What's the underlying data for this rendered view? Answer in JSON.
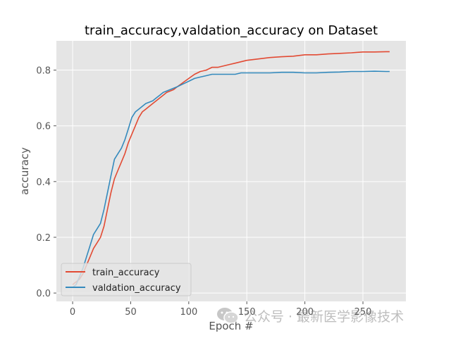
{
  "chart_data": {
    "type": "line",
    "title": "train_accuracy,valdation_accuracy on Dataset",
    "xlabel": "Epoch #",
    "ylabel": "accuracy",
    "xlim": [
      -14,
      287
    ],
    "ylim": [
      -0.03,
      0.905
    ],
    "xticks": [
      0,
      50,
      100,
      150,
      200,
      250
    ],
    "yticks": [
      0.0,
      0.2,
      0.4,
      0.6,
      0.8
    ],
    "ytick_labels": [
      "0.0",
      "0.2",
      "0.4",
      "0.6",
      "0.8"
    ],
    "grid": true,
    "style": "ggplot",
    "legend_position": "lower-left",
    "series": [
      {
        "name": "train_accuracy",
        "color": "#E24A33",
        "x": [
          0,
          3,
          6,
          9,
          12,
          15,
          18,
          21,
          24,
          27,
          30,
          33,
          36,
          39,
          42,
          45,
          48,
          51,
          54,
          57,
          60,
          63,
          66,
          69,
          72,
          75,
          78,
          81,
          84,
          87,
          90,
          95,
          100,
          105,
          110,
          115,
          120,
          125,
          130,
          135,
          140,
          145,
          150,
          160,
          170,
          180,
          190,
          200,
          210,
          220,
          230,
          240,
          250,
          260,
          270,
          273
        ],
        "y": [
          0.03,
          0.04,
          0.05,
          0.07,
          0.1,
          0.13,
          0.16,
          0.18,
          0.2,
          0.24,
          0.3,
          0.36,
          0.41,
          0.44,
          0.47,
          0.5,
          0.54,
          0.57,
          0.6,
          0.63,
          0.65,
          0.66,
          0.67,
          0.68,
          0.69,
          0.7,
          0.71,
          0.72,
          0.725,
          0.73,
          0.74,
          0.755,
          0.77,
          0.785,
          0.795,
          0.8,
          0.81,
          0.81,
          0.815,
          0.82,
          0.825,
          0.83,
          0.835,
          0.84,
          0.845,
          0.848,
          0.85,
          0.855,
          0.855,
          0.858,
          0.86,
          0.862,
          0.865,
          0.865,
          0.866,
          0.866
        ]
      },
      {
        "name": "valdation_accuracy",
        "color": "#348ABD",
        "x": [
          0,
          3,
          6,
          9,
          12,
          15,
          18,
          21,
          24,
          27,
          30,
          33,
          36,
          39,
          42,
          45,
          48,
          51,
          54,
          57,
          60,
          63,
          66,
          69,
          72,
          75,
          78,
          81,
          84,
          87,
          90,
          95,
          100,
          105,
          110,
          115,
          120,
          125,
          130,
          135,
          140,
          145,
          150,
          160,
          170,
          180,
          190,
          200,
          210,
          220,
          230,
          240,
          250,
          260,
          270,
          273
        ],
        "y": [
          0.02,
          0.03,
          0.06,
          0.09,
          0.13,
          0.17,
          0.21,
          0.23,
          0.25,
          0.3,
          0.36,
          0.42,
          0.48,
          0.5,
          0.52,
          0.55,
          0.59,
          0.63,
          0.65,
          0.66,
          0.67,
          0.68,
          0.685,
          0.69,
          0.7,
          0.71,
          0.72,
          0.725,
          0.73,
          0.735,
          0.74,
          0.75,
          0.76,
          0.77,
          0.775,
          0.78,
          0.785,
          0.785,
          0.785,
          0.785,
          0.785,
          0.79,
          0.79,
          0.79,
          0.79,
          0.792,
          0.792,
          0.79,
          0.79,
          0.792,
          0.793,
          0.795,
          0.795,
          0.796,
          0.795,
          0.795
        ]
      }
    ]
  },
  "watermark": {
    "text": "公众号 · 最新医学影像技术",
    "icon": "wechat-logo"
  }
}
